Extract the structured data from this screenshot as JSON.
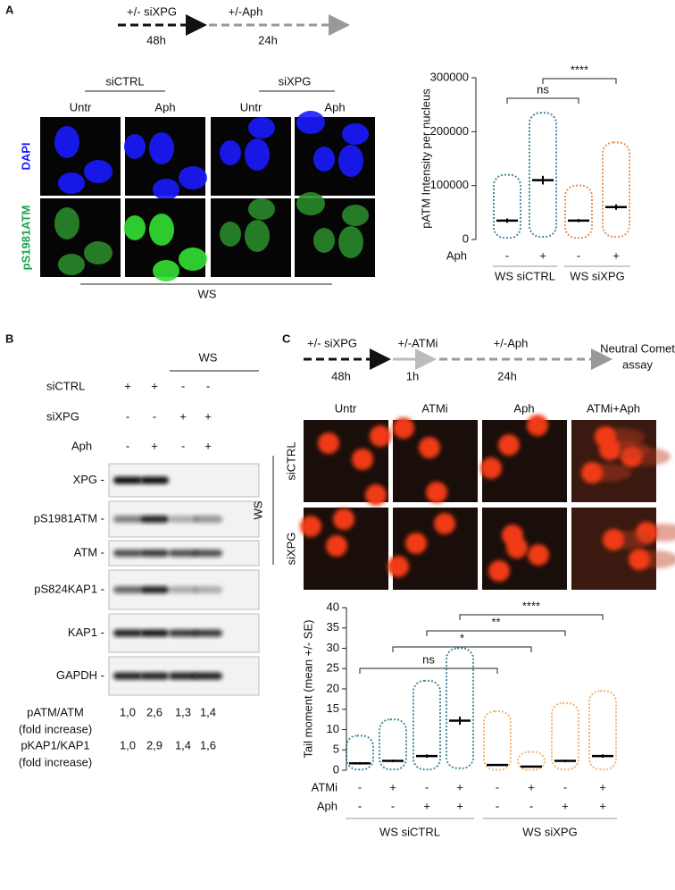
{
  "panel_a": {
    "label": "A",
    "timeline": [
      {
        "text": "+/- siXPG",
        "time": "48h"
      },
      {
        "text": "+/-Aph",
        "time": "24h"
      }
    ],
    "groups": [
      "siCTRL",
      "siXPG"
    ],
    "columns": [
      "Untr",
      "Aph",
      "Untr",
      "Aph"
    ],
    "rows": [
      "DAPI",
      "pS1981ATM"
    ],
    "cell_line": "WS"
  },
  "panel_b": {
    "label": "B",
    "cell_line": "WS",
    "conditions": [
      {
        "label": "siCTRL",
        "signs": [
          "+",
          "+",
          "-",
          "-"
        ]
      },
      {
        "label": "siXPG",
        "signs": [
          "-",
          "-",
          "+",
          "+"
        ]
      },
      {
        "label": "Aph",
        "signs": [
          "-",
          "+",
          "-",
          "+"
        ]
      }
    ],
    "blots": [
      "XPG -",
      "pS1981ATM -",
      "ATM -",
      "pS824KAP1 -",
      "KAP1 -",
      "GAPDH -"
    ],
    "quantification": [
      {
        "label": "pATM/ATM",
        "sublabel": "(fold increase)",
        "values": [
          "1,0",
          "2,6",
          "1,3",
          "1,4"
        ]
      },
      {
        "label": "pKAP1/KAP1",
        "sublabel": "(fold increase)",
        "values": [
          "1,0",
          "2,9",
          "1,4",
          "1,6"
        ]
      }
    ]
  },
  "panel_c": {
    "label": "C",
    "timeline": [
      {
        "text": "+/- siXPG",
        "time": "48h"
      },
      {
        "text": "+/-ATMi",
        "time": "1h"
      },
      {
        "text": "+/-Aph",
        "time": "24h"
      }
    ],
    "assay": [
      "Neutral Comet",
      "assay"
    ],
    "columns": [
      "Untr",
      "ATMi",
      "Aph",
      "ATMi+Aph"
    ],
    "rows": [
      "siCTRL",
      "siXPG"
    ],
    "cell_line": "WS"
  },
  "chart_data": [
    {
      "type": "dot",
      "ylabel": "pATM Intensity per nucleus",
      "ylim": [
        0,
        300000
      ],
      "yticks": [
        0,
        100000,
        200000,
        300000
      ],
      "series": [
        {
          "name": "WS siCTRL",
          "color": "#1b6f84",
          "values": [
            35000,
            110000
          ],
          "errors": [
            4000,
            8000
          ],
          "min": [
            3000,
            5000
          ],
          "max": [
            120000,
            235000
          ]
        },
        {
          "name": "WS siXPG",
          "color": "#e07b2f",
          "values": [
            35000,
            60000
          ],
          "errors": [
            3000,
            5000
          ],
          "min": [
            3000,
            5000
          ],
          "max": [
            100000,
            180000
          ]
        }
      ],
      "conditions": [
        {
          "label": "Aph",
          "signs": [
            "-",
            "+",
            "-",
            "+"
          ]
        }
      ],
      "annotations": [
        "ns",
        "****"
      ]
    },
    {
      "type": "dot",
      "ylabel": "Tail moment (mean +/- SE)",
      "ylim": [
        0,
        40
      ],
      "yticks": [
        0,
        5,
        10,
        15,
        20,
        25,
        30,
        35,
        40
      ],
      "series": [
        {
          "name": "WS siCTRL",
          "color": "#1b6f84",
          "values": [
            1.7,
            2.3,
            3.5,
            12.2
          ],
          "errors": [
            0.3,
            0.3,
            0.4,
            1.0
          ],
          "min": [
            0.2,
            0.2,
            0.2,
            0.5
          ],
          "max": [
            8.5,
            12.5,
            22,
            30
          ]
        },
        {
          "name": "WS siXPG",
          "color": "#f2a04a",
          "values": [
            1.3,
            0.9,
            2.3,
            3.5
          ],
          "errors": [
            0.2,
            0.1,
            0.3,
            0.4
          ],
          "min": [
            0.1,
            0.1,
            0.2,
            0.2
          ],
          "max": [
            14.5,
            4.5,
            16.5,
            19.5
          ]
        }
      ],
      "conditions": [
        {
          "label": "ATMi",
          "signs": [
            "-",
            "+",
            "-",
            "+",
            "-",
            "+",
            "-",
            "+"
          ]
        },
        {
          "label": "Aph",
          "signs": [
            "-",
            "-",
            "+",
            "+",
            "-",
            "-",
            "+",
            "+"
          ]
        }
      ],
      "annotations": [
        "ns",
        "*",
        "**",
        "****"
      ]
    }
  ]
}
